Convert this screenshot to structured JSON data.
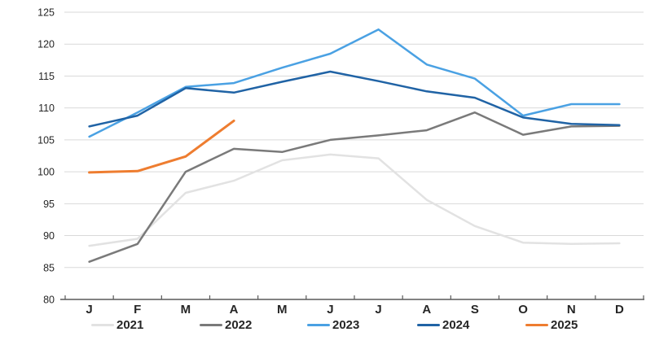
{
  "chart_data": {
    "type": "line",
    "title": "",
    "categories": [
      "J",
      "F",
      "M",
      "A",
      "M",
      "J",
      "J",
      "A",
      "S",
      "O",
      "N",
      "D"
    ],
    "y_tick_labels": [
      "80",
      "85",
      "90",
      "95",
      "100",
      "105",
      "110",
      "115",
      "120",
      "125"
    ],
    "ylim": [
      80,
      125
    ],
    "y_tick_step": 5,
    "grid": true,
    "legend_position": "bottom",
    "series": [
      {
        "name": "2021",
        "color": "#E2E2E2",
        "values": [
          88.4,
          89.5,
          96.7,
          98.6,
          101.8,
          102.7,
          102.1,
          95.6,
          91.5,
          88.9,
          88.7,
          88.8
        ]
      },
      {
        "name": "2022",
        "color": "#7A7A7A",
        "values": [
          85.9,
          88.7,
          100.0,
          103.6,
          103.1,
          105.0,
          105.7,
          106.5,
          109.3,
          105.8,
          107.1,
          107.2
        ]
      },
      {
        "name": "2023",
        "color": "#4AA1E3",
        "values": [
          105.5,
          109.3,
          113.3,
          113.9,
          116.3,
          118.5,
          122.3,
          116.8,
          114.6,
          108.8,
          110.6,
          110.6
        ]
      },
      {
        "name": "2024",
        "color": "#2063A5",
        "values": [
          107.1,
          108.8,
          113.1,
          112.4,
          114.1,
          115.7,
          114.2,
          112.6,
          111.6,
          108.5,
          107.5,
          107.3
        ]
      },
      {
        "name": "2025",
        "color": "#EE7D30",
        "values": [
          99.9,
          100.1,
          102.4,
          108.0
        ]
      }
    ]
  },
  "style": {
    "background": "#FFFFFF",
    "gridline_color": "#D9D9D9",
    "axis_color": "#595959",
    "text_color": "#262626"
  }
}
